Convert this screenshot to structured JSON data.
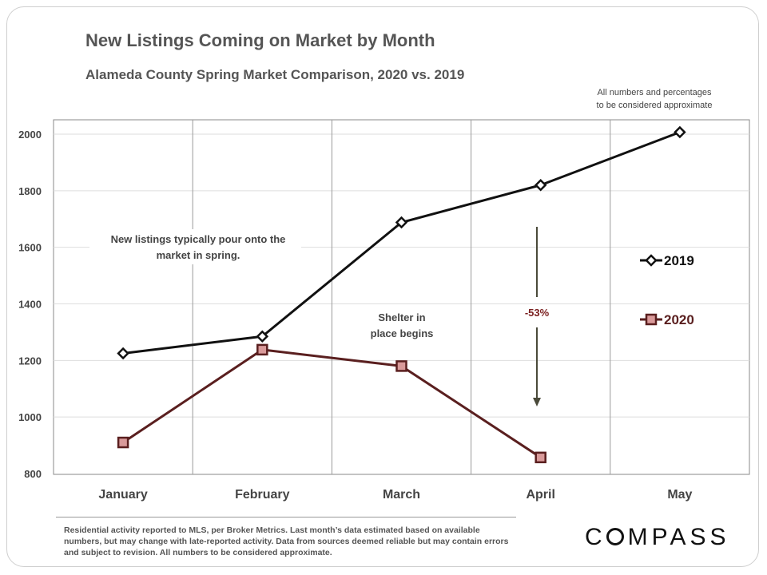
{
  "header": {
    "title": "New Listings Coming on Market by Month",
    "subtitle": "Alameda County Spring Market Comparison,  2020 vs. 2019",
    "disclaimer_line1": "All numbers and percentages",
    "disclaimer_line2": "to be considered approximate"
  },
  "chart_data": {
    "type": "line",
    "title": "New Listings Coming on Market by Month",
    "subtitle": "Alameda County Spring Market Comparison,  2020 vs. 2019",
    "xlabel": "",
    "ylabel": "",
    "categories": [
      "January",
      "February",
      "March",
      "April",
      "May"
    ],
    "ylim": [
      800,
      2000
    ],
    "yticks": [
      800,
      1000,
      1200,
      1400,
      1600,
      1800,
      2000
    ],
    "grid": "horizontal and vertical",
    "legend": "right",
    "series": [
      {
        "name": "2019",
        "values": [
          1225,
          1285,
          1688,
          1820,
          2007
        ],
        "color": "#111111",
        "marker": "diamond"
      },
      {
        "name": "2020",
        "values": [
          910,
          1238,
          1180,
          857,
          null
        ],
        "color": "#5a1f1f",
        "marker": "square",
        "marker_fill": "#d99a9a"
      }
    ],
    "annotations": {
      "spring_note": [
        "New listings typically pour onto the",
        "market in spring."
      ],
      "shelter_note": [
        "Shelter in",
        "place  begins"
      ],
      "decline_label": "-53%"
    }
  },
  "footer": {
    "note": "Residential activity reported to MLS, per Broker Metrics. Last month’s data estimated based on available numbers, but may change with late-reported activity. Data from sources deemed reliable but may contain errors and subject to revision. All numbers to be considered approximate.",
    "logo": "COMPASS"
  },
  "colors": {
    "series_2019": "#111111",
    "series_2020": "#5a1f1f",
    "marker_2020_fill": "#d99a9a",
    "arrow": "#4a4a3a",
    "grid": "#b0b0b0"
  }
}
